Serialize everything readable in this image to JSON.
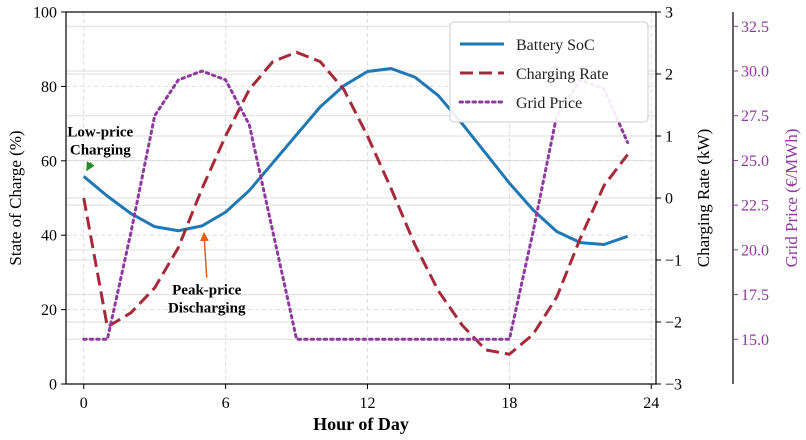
{
  "chart_data": {
    "type": "line",
    "xlabel": "Hour of Day",
    "x_ticks": [
      0,
      6,
      12,
      18,
      24
    ],
    "xlim": [
      -0.75,
      24.2
    ],
    "x": [
      0,
      1,
      2,
      3,
      4,
      5,
      6,
      7,
      8,
      9,
      10,
      11,
      12,
      13,
      14,
      15,
      16,
      17,
      18,
      19,
      20,
      21,
      22,
      23
    ],
    "axes": {
      "left": {
        "label": "State of Charge (%)",
        "ylim": [
          0,
          100
        ],
        "ticks": [
          0,
          20,
          40,
          60,
          80,
          100
        ]
      },
      "right": {
        "label": "Charging Rate (kW)",
        "ylim": [
          -3,
          3
        ],
        "ticks": [
          -3,
          -2,
          -1,
          0,
          1,
          2,
          3
        ],
        "tick_labels": [
          "−3",
          "−2",
          "−1",
          "0",
          "1",
          "2",
          "3"
        ]
      },
      "right2": {
        "label": "Grid Price (€/MWh)",
        "ylim": [
          12.5,
          33.3
        ],
        "ticks": [
          15.0,
          17.5,
          20.0,
          22.5,
          25.0,
          27.5,
          30.0,
          32.5
        ],
        "tick_labels": [
          "15.0",
          "17.5",
          "20.0",
          "22.5",
          "25.0",
          "27.5",
          "30.0",
          "32.5"
        ]
      }
    },
    "series": [
      {
        "name": "Battery SoC",
        "axis": "left",
        "style": "solid",
        "color": "#1f77b4",
        "values": [
          55.8,
          50.5,
          45.8,
          42.3,
          41.2,
          42.5,
          46.2,
          52.0,
          59.5,
          67.0,
          74.5,
          80.2,
          84.0,
          84.8,
          82.5,
          77.5,
          70.0,
          62.0,
          54.0,
          46.8,
          41.0,
          38.0,
          37.5,
          39.7
        ]
      },
      {
        "name": "Charging Rate",
        "axis": "right",
        "style": "dashed",
        "color": "#a52a3a",
        "values": [
          0.0,
          -2.08,
          -1.85,
          -1.45,
          -0.8,
          0.15,
          1.0,
          1.75,
          2.2,
          2.35,
          2.2,
          1.75,
          1.0,
          0.15,
          -0.75,
          -1.5,
          -2.05,
          -2.45,
          -2.52,
          -2.2,
          -1.6,
          -0.65,
          0.2,
          0.7
        ]
      },
      {
        "name": "Grid Price",
        "axis": "right2",
        "style": "dotted",
        "color": "#8e3a9e",
        "values": [
          15.0,
          15.0,
          21.0,
          27.5,
          29.5,
          30.0,
          29.5,
          27.0,
          21.0,
          15.0,
          15.0,
          15.0,
          15.0,
          15.0,
          15.0,
          15.0,
          15.0,
          15.0,
          15.0,
          21.0,
          27.5,
          29.5,
          29.0,
          26.0
        ]
      }
    ],
    "annotations": [
      {
        "lines": [
          "Low-price",
          "Charging"
        ],
        "target": {
          "x": 0,
          "y": 55.8,
          "axis": "left"
        },
        "text_at": {
          "x": 0.7,
          "y": 66.5
        },
        "arrow_color": "#2a8a2a"
      },
      {
        "lines": [
          "Peak-price",
          "Discharging"
        ],
        "target": {
          "x": 5,
          "y": 42.5,
          "axis": "left"
        },
        "text_at": {
          "x": 5.2,
          "y": 24.0
        },
        "arrow_color": "#e06010"
      }
    ],
    "legend_position": "top-right",
    "grid": true
  }
}
